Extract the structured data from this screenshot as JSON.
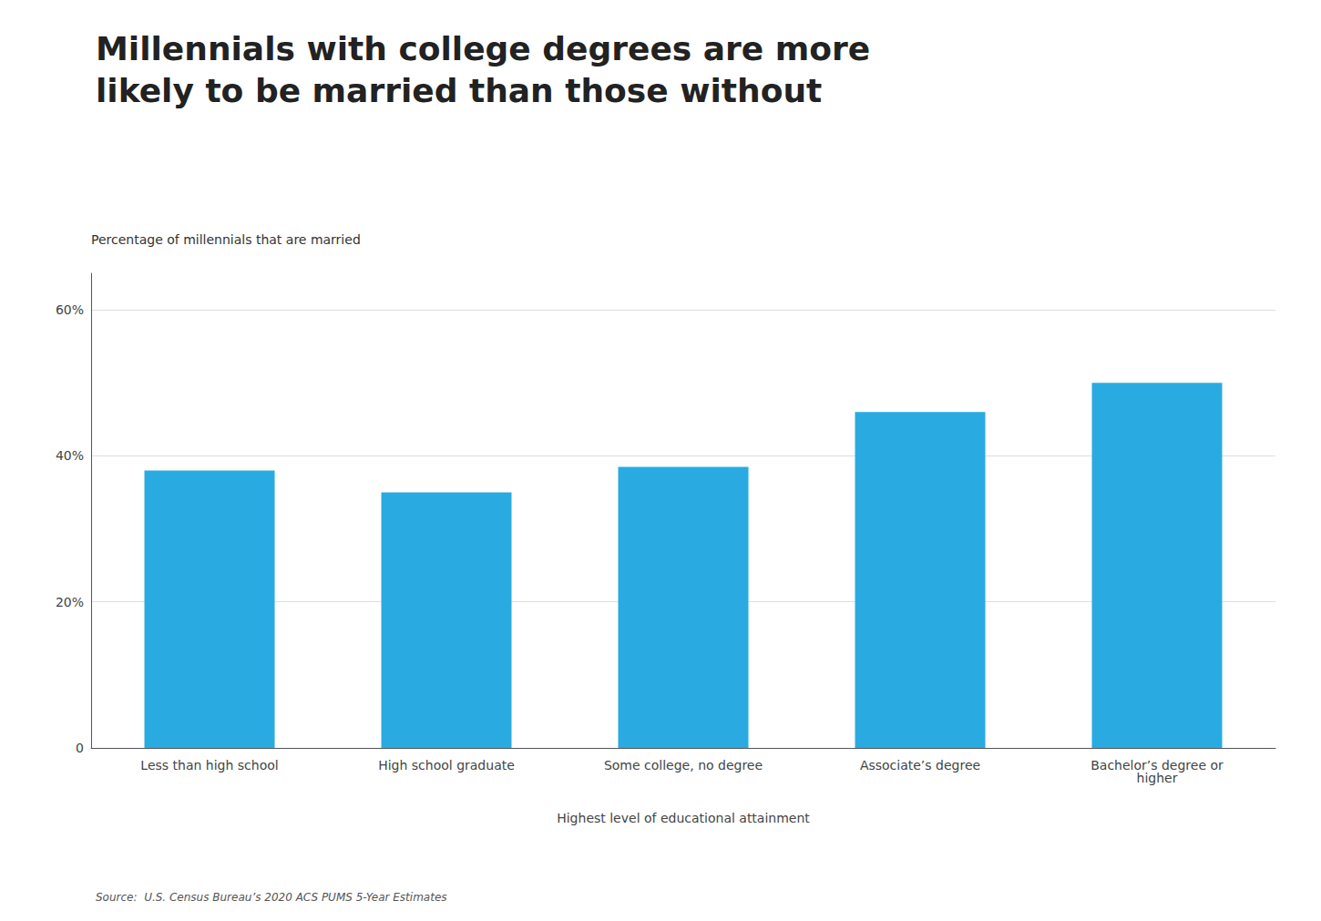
{
  "chart_data": {
    "type": "bar",
    "title": "Millennials with college degrees are more\nlikely to be married than those without",
    "ylabel": "Percentage of millennials that are married",
    "xlabel": "Highest level of educational attainment",
    "source": "Source:  U.S. Census Bureau’s 2020 ACS PUMS 5-Year Estimates",
    "categories": [
      "Less than high school",
      "High school graduate",
      "Some college, no degree",
      "Associate’s degree",
      "Bachelor’s degree or\nhigher"
    ],
    "values": [
      38,
      35,
      38.5,
      46,
      50
    ],
    "color": "#29ABE2",
    "ylim": [
      0,
      65
    ],
    "yticks": [
      0,
      {
        "value": 20,
        "label": "20%"
      },
      {
        "value": 40,
        "label": "40%"
      },
      {
        "value": 60,
        "label": "60%"
      }
    ],
    "grid": true
  }
}
